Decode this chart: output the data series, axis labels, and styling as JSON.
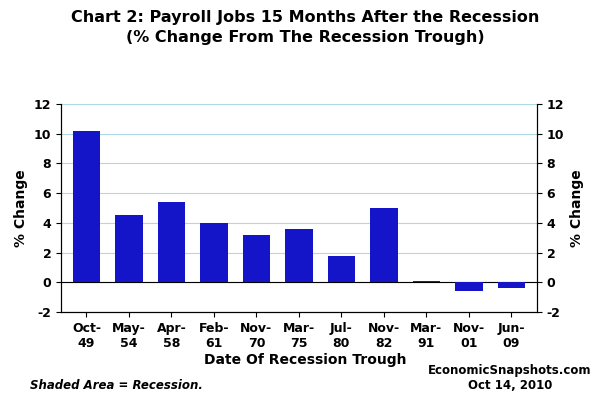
{
  "title_line1": "Chart 2: Payroll Jobs 15 Months After the Recession",
  "title_line2": "(% Change From The Recession Trough)",
  "categories_line1": [
    "Oct-",
    "May-",
    "Apr-",
    "Feb-",
    "Nov-",
    "Mar-",
    "Jul-",
    "Nov-",
    "Mar-",
    "Nov-",
    "Jun-"
  ],
  "categories_line2": [
    "49",
    "54",
    "58",
    "61",
    "70",
    "75",
    "80",
    "82",
    "91",
    "01",
    "09"
  ],
  "values": [
    10.2,
    4.5,
    5.4,
    4.0,
    3.2,
    3.6,
    1.8,
    5.0,
    0.1,
    -0.6,
    -0.4
  ],
  "bar_color": "#1414c8",
  "ylabel_left": "% Change",
  "ylabel_right": "% Change",
  "xlabel": "Date Of Recession Trough",
  "ylim": [
    -2,
    12
  ],
  "yticks": [
    -2,
    0,
    2,
    4,
    6,
    8,
    10,
    12
  ],
  "grid_color": "#add8e6",
  "background_color": "#ffffff",
  "footnote_left": "Shaded Area = Recession.",
  "footnote_right_line1": "EconomicSnapshots.com",
  "footnote_right_line2": "Oct 14, 2010",
  "title_fontsize": 11.5,
  "label_fontsize": 10,
  "tick_fontsize": 9,
  "footnote_fontsize": 8.5
}
